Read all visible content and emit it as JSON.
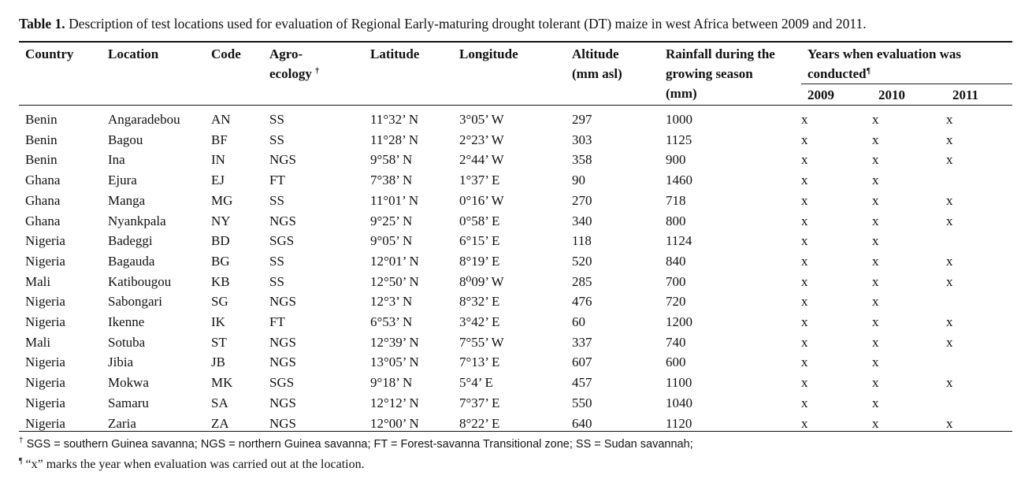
{
  "caption": {
    "label": "Table 1.",
    "text": " Description of test locations used for evaluation of Regional Early-maturing drought tolerant (DT) maize in west Africa between 2009 and 2011."
  },
  "table": {
    "headers": {
      "country": "Country",
      "location": "Location",
      "code": "Code",
      "agro_line1": "Agro-",
      "agro_line2": "ecology",
      "agro_mark": "†",
      "latitude": "Latitude",
      "longitude": "Longitude",
      "altitude_line1": "Altitude",
      "altitude_line2": "(mm asl)",
      "rainfall_line1": "Rainfall during the",
      "rainfall_line2": "growing season",
      "rainfall_line3": "(mm)",
      "years_line1": "Years when evaluation was",
      "years_line2": "conducted",
      "years_mark": "¶",
      "year_2009": "2009",
      "year_2010": "2010",
      "year_2011": "2011"
    },
    "rows": [
      {
        "country": "Benin",
        "location": "Angaradebou",
        "code": "AN",
        "agro": "SS",
        "lat": "11°32’ N",
        "lon": "3°05’ W",
        "alt": "297",
        "rain": "1000",
        "y2009": "x",
        "y2010": "x",
        "y2011": "x"
      },
      {
        "country": "Benin",
        "location": "Bagou",
        "code": "BF",
        "agro": "SS",
        "lat": "11°28’ N",
        "lon": "2°23’ W",
        "alt": "303",
        "rain": "1125",
        "y2009": "x",
        "y2010": "x",
        "y2011": "x"
      },
      {
        "country": "Benin",
        "location": "Ina",
        "code": "IN",
        "agro": "NGS",
        "lat": "9°58’ N",
        "lon": "2°44’ W",
        "alt": "358",
        "rain": "900",
        "y2009": "x",
        "y2010": "x",
        "y2011": "x"
      },
      {
        "country": "Ghana",
        "location": "Ejura",
        "code": "EJ",
        "agro": "FT",
        "lat": "7°38’ N",
        "lon": "1°37’ E",
        "alt": "90",
        "rain": "1460",
        "y2009": "x",
        "y2010": "x",
        "y2011": ""
      },
      {
        "country": "Ghana",
        "location": "Manga",
        "code": "MG",
        "agro": "SS",
        "lat": "11°01’ N",
        "lon": "0°16’ W",
        "alt": "270",
        "rain": "718",
        "y2009": "x",
        "y2010": "x",
        "y2011": "x"
      },
      {
        "country": "Ghana",
        "location": "Nyankpala",
        "code": "NY",
        "agro": "NGS",
        "lat": "9°25’ N",
        "lon": "0°58’ E",
        "alt": "340",
        "rain": "800",
        "y2009": "x",
        "y2010": "x",
        "y2011": "x"
      },
      {
        "country": "Nigeria",
        "location": "Badeggi",
        "code": "BD",
        "agro": "SGS",
        "lat": "9°05’ N",
        "lon": "6°15’ E",
        "alt": "118",
        "rain": "1124",
        "y2009": "x",
        "y2010": "x",
        "y2011": ""
      },
      {
        "country": "Nigeria",
        "location": "Bagauda",
        "code": "BG",
        "agro": "SS",
        "lat": "12°01’ N",
        "lon": "8°19’ E",
        "alt": "520",
        "rain": "840",
        "y2009": "x",
        "y2010": "x",
        "y2011": "x"
      },
      {
        "country": "Mali",
        "location": "Katibougou",
        "code": "KB",
        "agro": "SS",
        "lat": "12°50’ N",
        "lon": "8⁰09’ W",
        "alt": "285",
        "rain": "700",
        "y2009": "x",
        "y2010": "x",
        "y2011": "x"
      },
      {
        "country": "Nigeria",
        "location": "Sabongari",
        "code": "SG",
        "agro": "NGS",
        "lat": "12°3’ N",
        "lon": "8°32’ E",
        "alt": "476",
        "rain": "720",
        "y2009": "x",
        "y2010": "x",
        "y2011": ""
      },
      {
        "country": "Nigeria",
        "location": "Ikenne",
        "code": "IK",
        "agro": "FT",
        "lat": "6°53’ N",
        "lon": "3°42’ E",
        "alt": "60",
        "rain": "1200",
        "y2009": "x",
        "y2010": "x",
        "y2011": "x"
      },
      {
        "country": "Mali",
        "location": "Sotuba",
        "code": "ST",
        "agro": "NGS",
        "lat": "12°39’ N",
        "lon": "7°55’ W",
        "alt": "337",
        "rain": "740",
        "y2009": "x",
        "y2010": "x",
        "y2011": "x"
      },
      {
        "country": "Nigeria",
        "location": "Jibia",
        "code": "JB",
        "agro": "NGS",
        "lat": "13°05’ N",
        "lon": "7°13’ E",
        "alt": "607",
        "rain": "600",
        "y2009": "x",
        "y2010": "x",
        "y2011": ""
      },
      {
        "country": "Nigeria",
        "location": "Mokwa",
        "code": "MK",
        "agro": "SGS",
        "lat": "9°18’ N",
        "lon": "5°4’ E",
        "alt": "457",
        "rain": "1100",
        "y2009": "x",
        "y2010": "x",
        "y2011": "x"
      },
      {
        "country": "Nigeria",
        "location": "Samaru",
        "code": "SA",
        "agro": "NGS",
        "lat": "12°12’ N",
        "lon": "7°37’ E",
        "alt": "550",
        "rain": "1040",
        "y2009": "x",
        "y2010": "x",
        "y2011": ""
      },
      {
        "country": "Nigeria",
        "location": "Zaria",
        "code": "ZA",
        "agro": "NGS",
        "lat": "12°00’ N",
        "lon": "8°22’ E",
        "alt": "640",
        "rain": "1120",
        "y2009": "x",
        "y2010": "x",
        "y2011": "x"
      }
    ]
  },
  "footnotes": {
    "fn1_mark": "†",
    "fn1_text": " SGS = southern Guinea savanna; NGS = northern Guinea savanna; FT = Forest-savanna Transitional zone; SS = Sudan savannah;",
    "fn2_mark": "¶",
    "fn2_text": " “x” marks the year when evaluation was carried out at the location."
  }
}
